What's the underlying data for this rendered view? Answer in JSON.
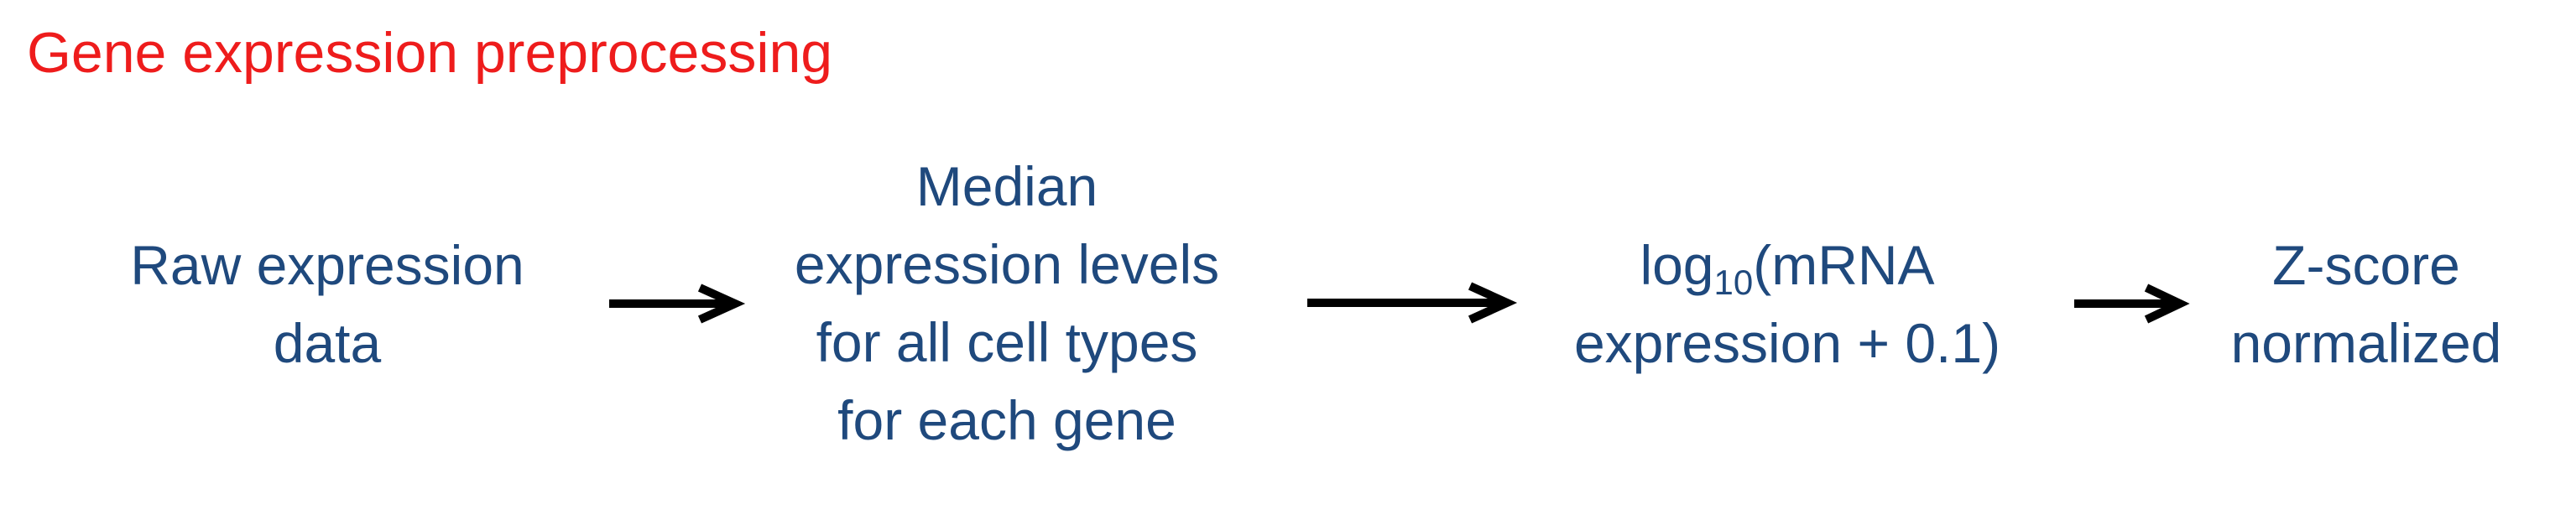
{
  "title": "Gene expression preprocessing",
  "steps": [
    {
      "lines": [
        "Raw expression",
        "data"
      ]
    },
    {
      "lines": [
        "Median",
        "expression levels",
        "for all cell types",
        "for each gene"
      ]
    },
    {
      "log_prefix": "log",
      "log_base": "10",
      "log_suffix": "(mRNA",
      "line2": "expression + 0.1)"
    },
    {
      "lines": [
        "Z-score",
        "normalized"
      ]
    }
  ],
  "colors": {
    "title": "#ee1c1c",
    "step_text": "#1f497d",
    "arrow": "#000000"
  }
}
